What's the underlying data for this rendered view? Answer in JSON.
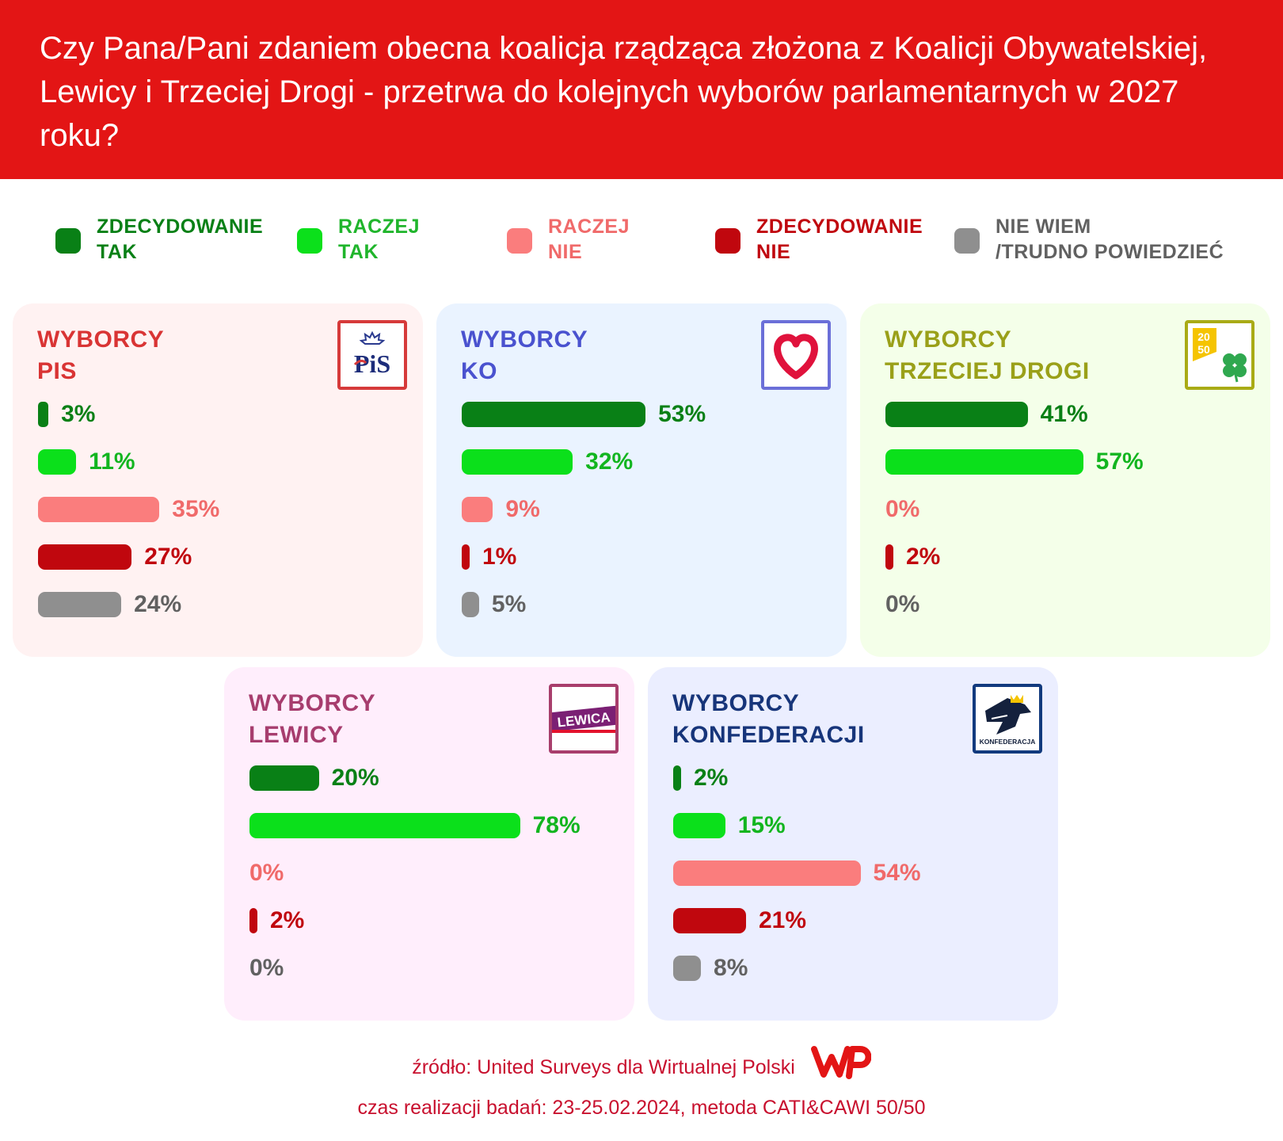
{
  "header": {
    "title": "Czy Pana/Pani zdaniem obecna koalicja rządząca złożona z Koalicji Obywatelskiej, Lewicy i Trzeciej Drogi - przetrwa do kolejnych wyborów parlamentarnych w 2027 roku?"
  },
  "colors": {
    "header_bg": "#e31515",
    "zdecydowanie_tak": "#098016",
    "raczej_tak": "#0be01b",
    "raczej_nie": "#fa7d7d",
    "zdecydowanie_nie": "#c0070e",
    "nie_wiem": "#8f8f8f"
  },
  "legend": [
    {
      "label": "ZDECYDOWANIE\nTAK",
      "color": "#098016",
      "text_color": "#098016"
    },
    {
      "label": "RACZEJ\nTAK",
      "color": "#0be01b",
      "text_color": "#20b52c"
    },
    {
      "label": "RACZEJ\nNIE",
      "color": "#fa7d7d",
      "text_color": "#f06a6a"
    },
    {
      "label": "ZDECYDOWANIE\nNIE",
      "color": "#c0070e",
      "text_color": "#c0070e"
    },
    {
      "label": "NIE WIEM\n/TRUDNO POWIEDZIEĆ",
      "color": "#8f8f8f",
      "text_color": "#616161"
    }
  ],
  "chart_data": {
    "type": "bar",
    "orientation": "horizontal",
    "categories": [
      "ZDECYDOWANIE TAK",
      "RACZEJ TAK",
      "RACZEJ NIE",
      "ZDECYDOWANIE NIE",
      "NIE WIEM /TRUDNO POWIEDZIEĆ"
    ],
    "unit": "%",
    "panels": [
      {
        "title": "WYBORCY\nPIS",
        "logo": "pis-logo",
        "title_color": "#d93434",
        "bg": "#fff2f2",
        "logo_border": "#d63a3a",
        "values": [
          3,
          11,
          35,
          27,
          24
        ],
        "labels": [
          "3%",
          "11%",
          "35%",
          "27%",
          "24%"
        ]
      },
      {
        "title": "WYBORCY\nKO",
        "logo": "heart-logo",
        "title_color": "#4a52cf",
        "bg": "#eaf3ff",
        "logo_border": "#6b6fd8",
        "values": [
          53,
          32,
          9,
          1,
          5
        ],
        "labels": [
          "53%",
          "32%",
          "9%",
          "1%",
          "5%"
        ]
      },
      {
        "title": "WYBORCY\nTRZECIEJ DROGI",
        "logo": "trzecia-droga-logo",
        "title_color": "#9aa019",
        "bg": "#f4ffe9",
        "logo_border": "#a9ab16",
        "values": [
          41,
          57,
          0,
          2,
          0
        ],
        "labels": [
          "41%",
          "57%",
          "0%",
          "2%",
          "0%"
        ]
      },
      {
        "title": "WYBORCY\nLEWICY",
        "logo": "lewica-logo",
        "title_color": "#a73d6e",
        "bg": "#ffeefc",
        "logo_border": "#a83e6c",
        "values": [
          20,
          78,
          0,
          2,
          0
        ],
        "labels": [
          "20%",
          "78%",
          "0%",
          "2%",
          "0%"
        ]
      },
      {
        "title": "WYBORCY\nKONFEDERACJI",
        "logo": "konfederacja-logo",
        "title_color": "#17357a",
        "bg": "#ebeeff",
        "logo_border": "#123a7e",
        "values": [
          2,
          15,
          54,
          21,
          8
        ],
        "labels": [
          "2%",
          "15%",
          "54%",
          "21%",
          "8%"
        ]
      }
    ]
  },
  "logos": {
    "pis": "PiS",
    "lewica": "LEWICA",
    "trzecia_droga": "20\n50",
    "konfederacja": "KONFEDERACJA"
  },
  "footer": {
    "source": "źródło: United Surveys dla Wirtualnej Polski",
    "method": "czas realizacji badań: 23-25.02.2024, metoda CATI&CAWI 50/50",
    "brand": "WP"
  }
}
